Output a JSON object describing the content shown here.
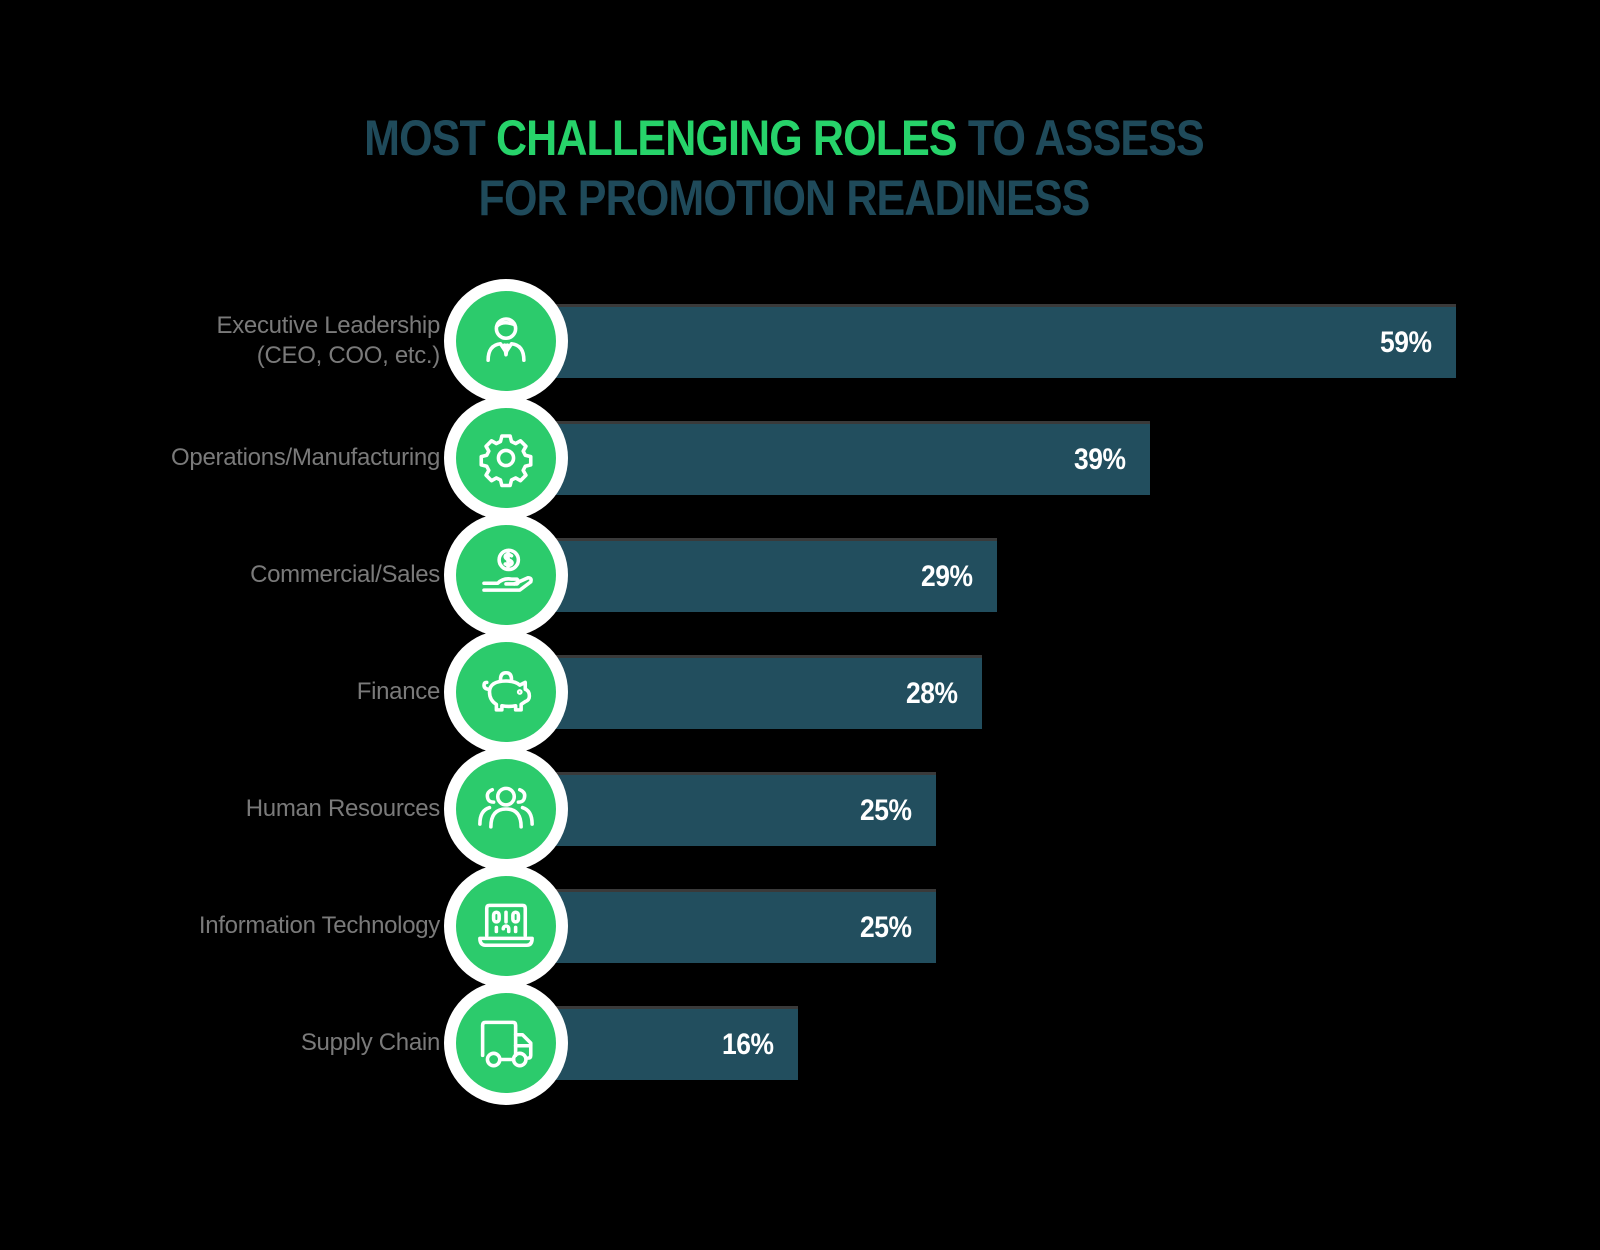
{
  "title": {
    "line1_part1": "MOST ",
    "line1_highlight": "CHALLENGING ROLES",
    "line1_part2": " TO ASSESS",
    "line2": "FOR PROMOTION READINESS",
    "color_primary": "#1f4a5a",
    "color_highlight": "#27d36a"
  },
  "rows": [
    {
      "label_line1": "Executive Leadership",
      "label_line2": "(CEO, COO, etc.)",
      "icon": "executive-person-icon",
      "value_label": "59%"
    },
    {
      "label_line1": "Operations/Manufacturing",
      "label_line2": "",
      "icon": "gear-icon",
      "value_label": "39%"
    },
    {
      "label_line1": "Commercial/Sales",
      "label_line2": "",
      "icon": "hand-coin-dollar-icon",
      "value_label": "29%"
    },
    {
      "label_line1": "Finance",
      "label_line2": "",
      "icon": "piggy-bank-icon",
      "value_label": "28%"
    },
    {
      "label_line1": "Human Resources",
      "label_line2": "",
      "icon": "people-group-icon",
      "value_label": "25%"
    },
    {
      "label_line1": "Information Technology",
      "label_line2": "",
      "icon": "laptop-binary-icon",
      "value_label": "25%"
    },
    {
      "label_line1": "Supply Chain",
      "label_line2": "",
      "icon": "delivery-truck-icon",
      "value_label": "16%"
    }
  ],
  "colors": {
    "bar": "#224e5e",
    "badge": "#2ccb6c",
    "label": "#7a7a7a",
    "value_text": "#ffffff"
  },
  "chart_data": {
    "type": "bar",
    "orientation": "horizontal",
    "title": "MOST CHALLENGING ROLES TO ASSESS FOR PROMOTION READINESS",
    "categories": [
      "Executive Leadership (CEO, COO, etc.)",
      "Operations/Manufacturing",
      "Commercial/Sales",
      "Finance",
      "Human Resources",
      "Information Technology",
      "Supply Chain"
    ],
    "values": [
      59,
      39,
      29,
      28,
      25,
      25,
      16
    ],
    "unit": "%",
    "data_labels": [
      "59%",
      "39%",
      "29%",
      "28%",
      "25%",
      "25%",
      "16%"
    ],
    "xlabel": "",
    "ylabel": "",
    "grid": false,
    "legend": null
  }
}
